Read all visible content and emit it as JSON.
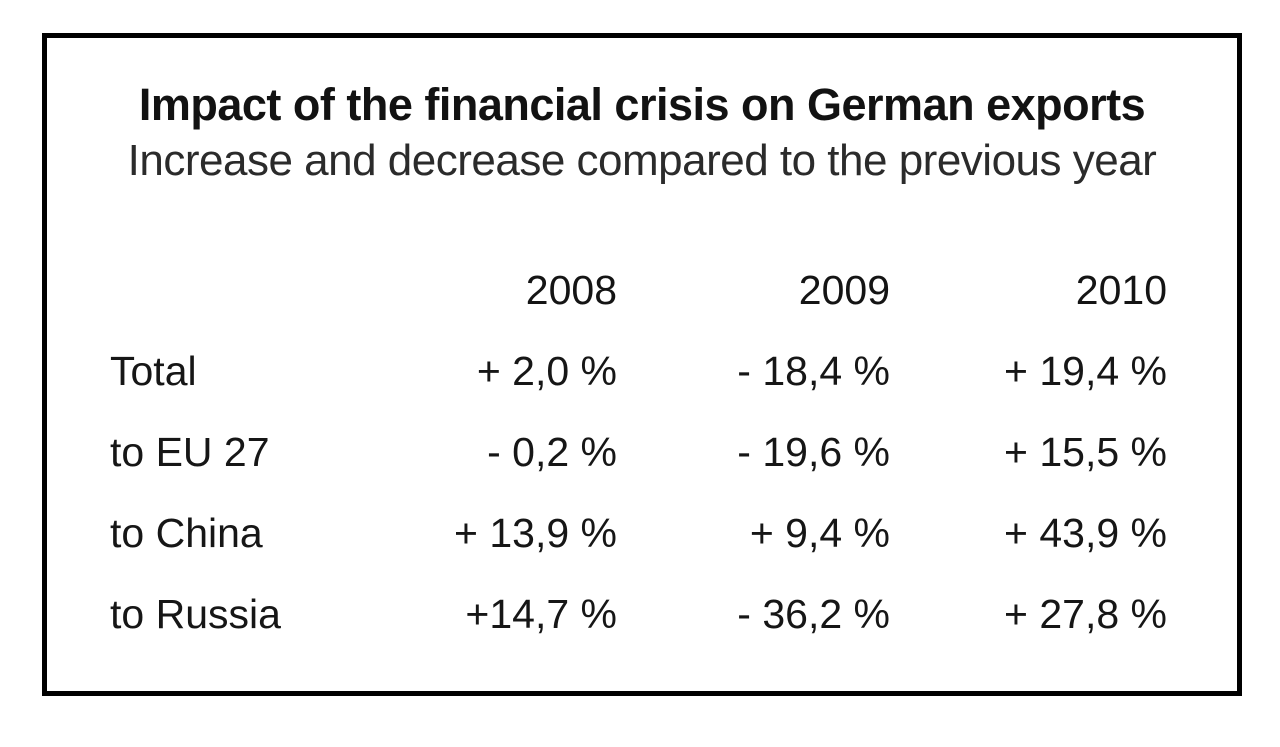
{
  "chart_data": {
    "type": "table",
    "title": "Impact of the financial crisis on German exports",
    "subtitle": "Increase and decrease compared to the previous year",
    "columns": [
      "",
      "2008",
      "2009",
      "2010"
    ],
    "rows": [
      {
        "label": "Total",
        "values": [
          "+ 2,0 %",
          "- 18,4 %",
          "+ 19,4 %"
        ]
      },
      {
        "label": "to EU 27",
        "values": [
          "- 0,2 %",
          "- 19,6 %",
          "+ 15,5 %"
        ]
      },
      {
        "label": "to China",
        "values": [
          "+ 13,9 %",
          "+ 9,4 %",
          "+ 43,9 %"
        ]
      },
      {
        "label": "to Russia",
        "values": [
          "+14,7 %",
          "- 36,2 %",
          "+ 27,8 %"
        ]
      }
    ],
    "layout": {
      "border_color": "#000000",
      "background": "#ffffff",
      "text_color": "#161616",
      "numeric_alignment": "right",
      "decimal_separator": ","
    }
  }
}
